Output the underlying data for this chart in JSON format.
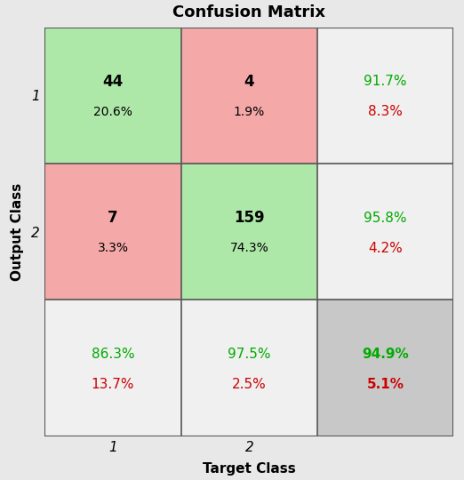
{
  "title": "Confusion Matrix",
  "xlabel": "Target Class",
  "ylabel": "Output Class",
  "matrix": [
    [
      44,
      4
    ],
    [
      7,
      159
    ]
  ],
  "matrix_pct": [
    [
      "20.6%",
      "1.9%"
    ],
    [
      "3.3%",
      "74.3%"
    ]
  ],
  "row_pct_correct": [
    "91.7%",
    "95.8%"
  ],
  "row_pct_wrong": [
    "8.3%",
    "4.2%"
  ],
  "col_pct_correct": [
    "86.3%",
    "97.5%"
  ],
  "col_pct_wrong": [
    "13.7%",
    "2.5%"
  ],
  "overall_pct_correct": "94.9%",
  "overall_pct_wrong": "5.1%",
  "cell_colors": [
    [
      "#aee8a8",
      "#f4a9a8"
    ],
    [
      "#f4a9a8",
      "#aee8a8"
    ]
  ],
  "row_summary_bg": "#f0f0f0",
  "col_summary_bg": "#f0f0f0",
  "overall_bg": "#c8c8c8",
  "fig_bg": "#e8e8e8",
  "grid_color": "#555555",
  "color_correct": "#00aa00",
  "color_wrong": "#cc0000",
  "x_tick_labels": [
    "1",
    "2"
  ],
  "y_tick_labels": [
    "1",
    "2"
  ],
  "title_fontsize": 13,
  "label_fontsize": 11,
  "tick_fontsize": 11,
  "cell_count_fontsize": 12,
  "cell_pct_fontsize": 10,
  "summary_pct_fontsize": 11
}
